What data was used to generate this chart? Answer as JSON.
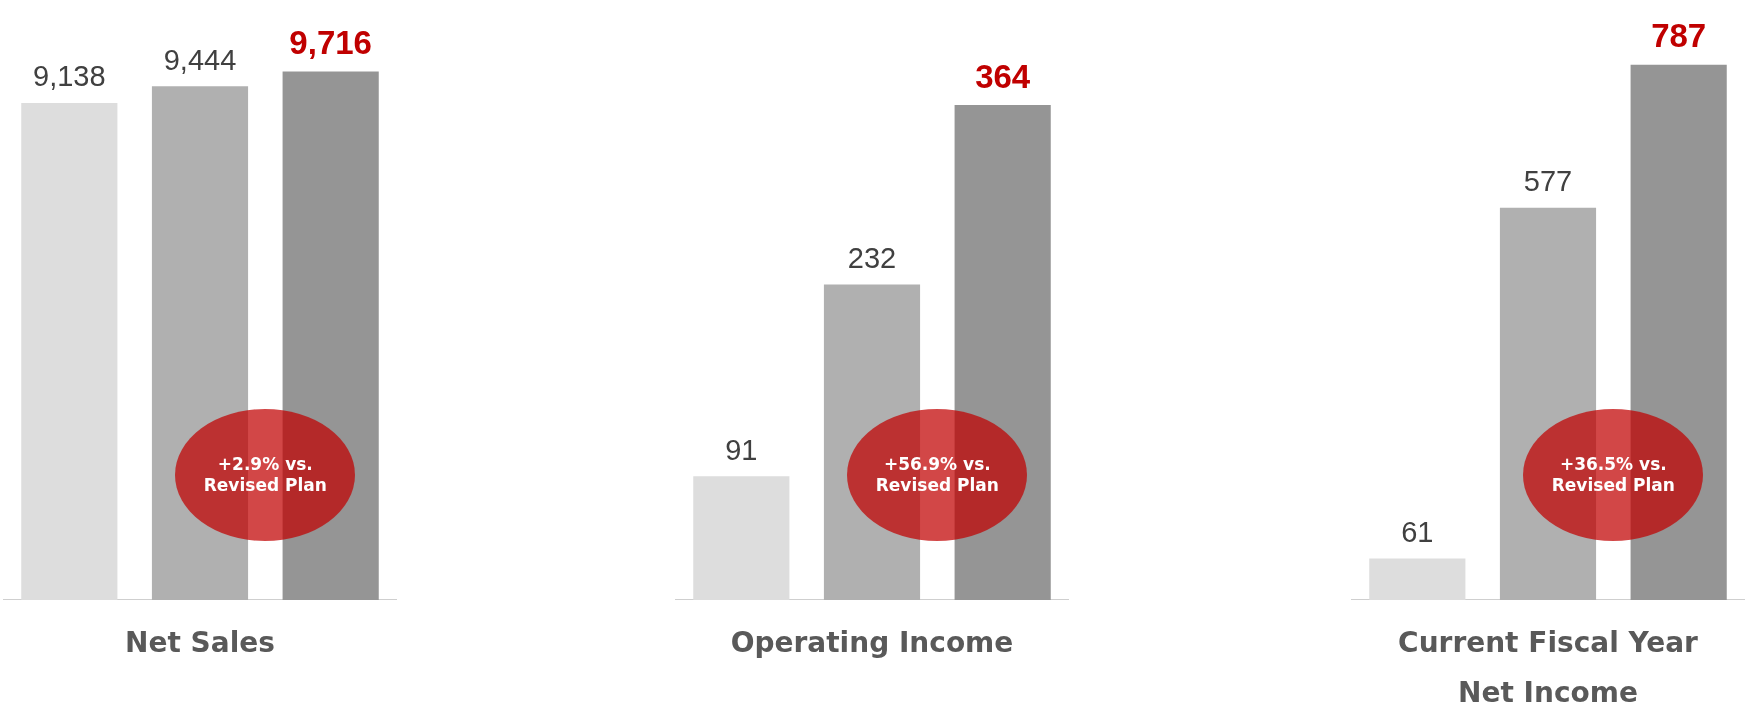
{
  "chart_data": [
    {
      "type": "bar",
      "xlabel": "Net Sales",
      "categories": [
        null,
        null,
        null
      ],
      "values": [
        9138,
        9444,
        9716
      ],
      "colors": [
        "#dddddd",
        "#b0b0b0",
        "#959595"
      ],
      "tick_labels": false,
      "grid": false,
      "legend": false,
      "value_labels": [
        "9,138",
        "9,444",
        "9,716"
      ],
      "annotations": [
        "+2.9% vs. Revised Plan"
      ]
    },
    {
      "type": "bar",
      "xlabel": "Operating Income",
      "categories": [
        null,
        null,
        null
      ],
      "values": [
        91,
        232,
        364
      ],
      "colors": [
        "#dddddd",
        "#b0b0b0",
        "#959595"
      ],
      "tick_labels": false,
      "grid": false,
      "legend": false,
      "value_labels": [
        "91",
        "232",
        "364"
      ],
      "annotations": [
        "+56.9% vs. Revised Plan"
      ]
    },
    {
      "type": "bar",
      "xlabel": "Current Fiscal Year Net Income",
      "categories": [
        null,
        null,
        null
      ],
      "values": [
        61,
        577,
        787
      ],
      "colors": [
        "#dddddd",
        "#b0b0b0",
        "#959595"
      ],
      "tick_labels": false,
      "grid": false,
      "legend": false,
      "value_labels": [
        "61",
        "577",
        "787"
      ],
      "annotations": [
        "+36.5% vs. Revised Plan"
      ]
    }
  ]
}
